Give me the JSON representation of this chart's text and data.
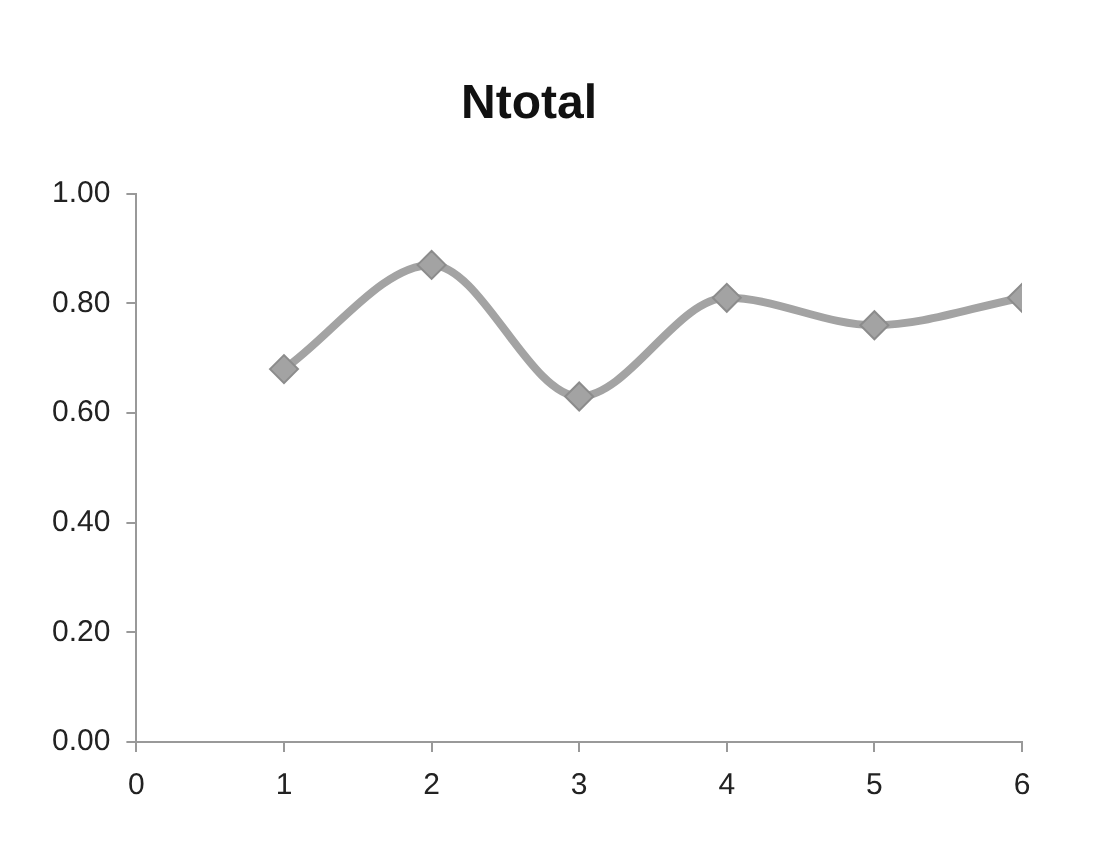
{
  "chart_data": {
    "type": "line",
    "title": "Ntotal",
    "x": [
      1,
      2,
      3,
      4,
      5,
      6
    ],
    "series": [
      {
        "color": "#a3a3a3",
        "values": [
          0.68,
          0.87,
          0.63,
          0.81,
          0.76,
          0.81
        ]
      }
    ],
    "xlim": [
      0,
      6
    ],
    "xticks": [
      0,
      1,
      2,
      3,
      4,
      5,
      6
    ],
    "ylim": [
      0,
      1
    ],
    "yticks": [
      {
        "value": 0,
        "label": "0.00"
      },
      {
        "value": 0.2,
        "label": "0.20"
      },
      {
        "value": 0.4,
        "label": "0.40"
      },
      {
        "value": 0.6,
        "label": "0.60"
      },
      {
        "value": 0.8,
        "label": "0.80"
      },
      {
        "value": 1,
        "label": "1.00"
      }
    ],
    "grid": false,
    "legend": false,
    "marker": "diamond",
    "line_style": "solid"
  }
}
